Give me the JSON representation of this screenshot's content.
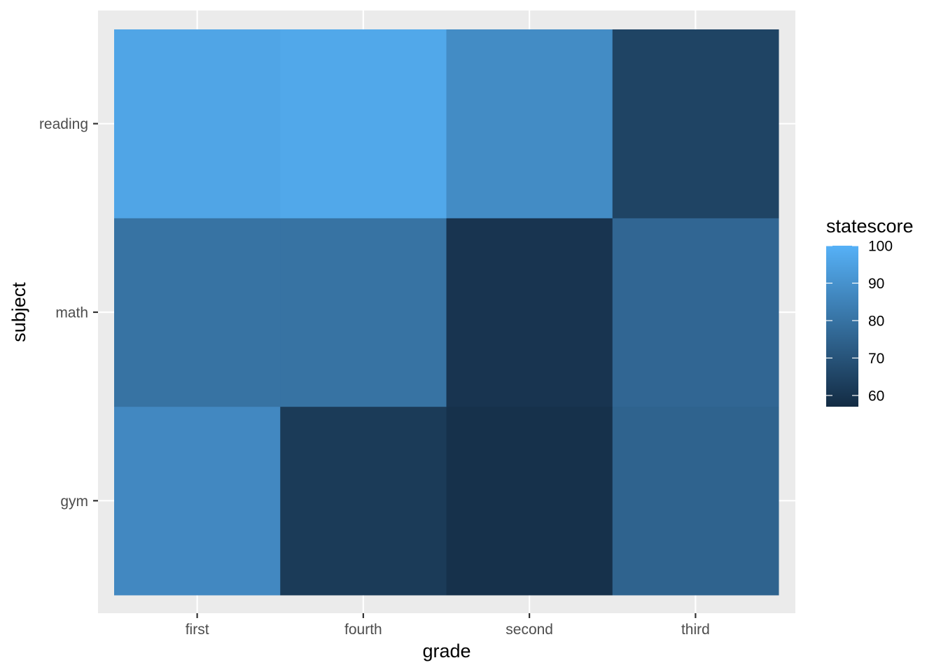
{
  "chart_data": {
    "type": "heatmap",
    "xlabel": "grade",
    "ylabel": "subject",
    "x_categories": [
      "first",
      "fourth",
      "second",
      "third"
    ],
    "y_categories": [
      "gym",
      "math",
      "reading"
    ],
    "values": [
      [
        87,
        62,
        59,
        75
      ],
      [
        80,
        80,
        60,
        76
      ],
      [
        96,
        97,
        88,
        65
      ]
    ],
    "legend": {
      "title": "statescore",
      "ticks": [
        60,
        70,
        80,
        90,
        100
      ],
      "range": [
        57,
        100
      ],
      "low_color": "#132B43",
      "high_color": "#56B1F7"
    },
    "panel_background": "#ebebeb",
    "grid": true
  }
}
